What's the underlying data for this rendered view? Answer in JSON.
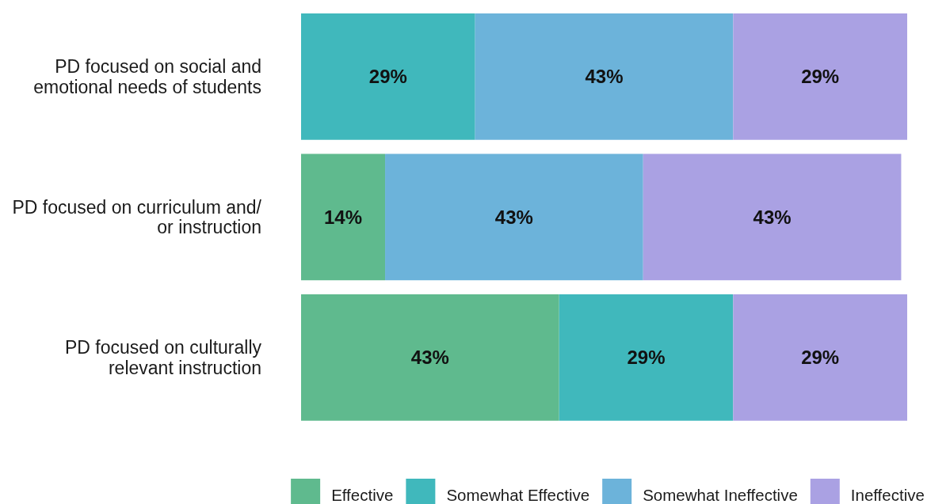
{
  "chart_data": {
    "type": "bar",
    "orientation": "horizontal",
    "stacked": true,
    "categories": [
      "PD focused on social and emotional needs of students",
      "PD focused on curriculum and/or instruction",
      "PD focused on culturally relevant instruction"
    ],
    "series": [
      {
        "name": "Effective",
        "color": "#5fba8e",
        "values": [
          0,
          14,
          43
        ],
        "value_labels": [
          null,
          "14%",
          "43%"
        ]
      },
      {
        "name": "Somewhat Effective",
        "color": "#40b8bc",
        "values": [
          29,
          0,
          29
        ],
        "value_labels": [
          "29%",
          null,
          "29%"
        ]
      },
      {
        "name": "Somewhat Ineffective",
        "color": "#6cb3da",
        "values": [
          43,
          43,
          0
        ],
        "value_labels": [
          "43%",
          "43%",
          null
        ]
      },
      {
        "name": "Ineffective",
        "color": "#aaa1e3",
        "values": [
          29,
          43,
          29
        ],
        "value_labels": [
          "29%",
          "43%",
          "29%"
        ]
      }
    ],
    "xlim": [
      0,
      101
    ],
    "tick_labels": "y",
    "legend": "bottom"
  }
}
